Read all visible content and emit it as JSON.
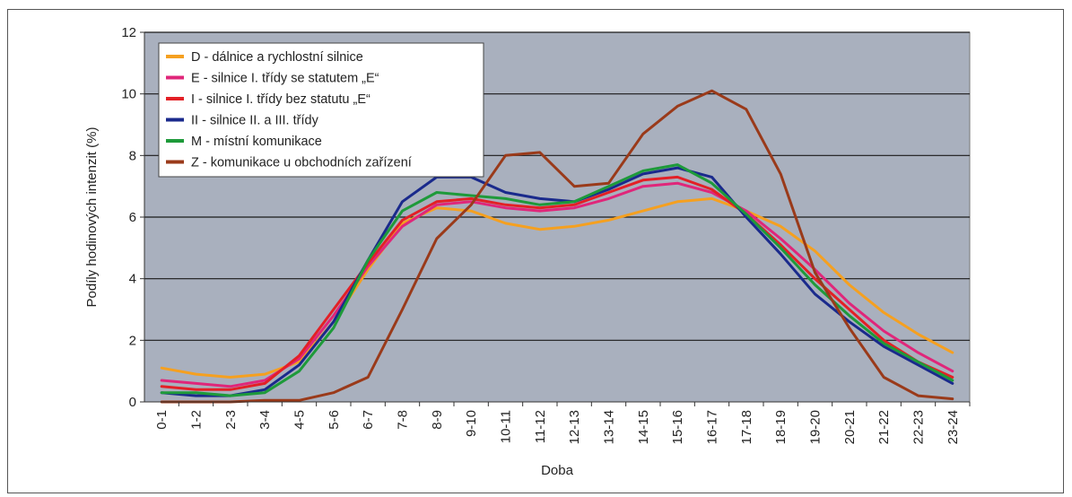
{
  "chart_data": {
    "type": "line",
    "title": "",
    "xlabel": "Doba",
    "ylabel": "Podíly hodinových intenzit (%)",
    "ylim": [
      0,
      12
    ],
    "yticks": [
      0,
      2,
      4,
      6,
      8,
      10,
      12
    ],
    "grid": true,
    "legend_position": "top-left",
    "background": "#a9b0be",
    "categories": [
      "0-1",
      "1-2",
      "2-3",
      "3-4",
      "4-5",
      "5-6",
      "6-7",
      "7-8",
      "8-9",
      "9-10",
      "10-11",
      "11-12",
      "12-13",
      "13-14",
      "14-15",
      "15-16",
      "16-17",
      "17-18",
      "18-19",
      "19-20",
      "20-21",
      "21-22",
      "22-23",
      "23-24"
    ],
    "series": [
      {
        "name": "D - dálnice a rychlostní silnice",
        "color": "#f5a020",
        "values": [
          1.1,
          0.9,
          0.8,
          0.9,
          1.3,
          2.6,
          4.3,
          5.8,
          6.3,
          6.2,
          5.8,
          5.6,
          5.7,
          5.9,
          6.2,
          6.5,
          6.6,
          6.2,
          5.7,
          4.9,
          3.8,
          2.9,
          2.2,
          1.6
        ]
      },
      {
        "name": "E - silnice I. třídy se statutem „E“",
        "color": "#e0267a",
        "values": [
          0.7,
          0.6,
          0.5,
          0.7,
          1.4,
          2.8,
          4.4,
          5.7,
          6.4,
          6.5,
          6.3,
          6.2,
          6.3,
          6.6,
          7.0,
          7.1,
          6.8,
          6.2,
          5.3,
          4.3,
          3.2,
          2.3,
          1.6,
          1.0
        ]
      },
      {
        "name": "I - silnice I. třídy bez statutu „E“",
        "color": "#e32026",
        "values": [
          0.5,
          0.4,
          0.4,
          0.6,
          1.5,
          3.0,
          4.5,
          5.9,
          6.5,
          6.6,
          6.4,
          6.3,
          6.4,
          6.8,
          7.2,
          7.3,
          6.9,
          6.1,
          5.1,
          4.0,
          3.0,
          2.0,
          1.3,
          0.8
        ]
      },
      {
        "name": "II - silnice II. a III. třídy",
        "color": "#1a2a8c",
        "values": [
          0.3,
          0.2,
          0.2,
          0.4,
          1.2,
          2.6,
          4.6,
          6.5,
          7.3,
          7.3,
          6.8,
          6.6,
          6.5,
          6.9,
          7.4,
          7.6,
          7.3,
          6.0,
          4.8,
          3.5,
          2.6,
          1.8,
          1.2,
          0.6
        ]
      },
      {
        "name": "M - místní komunikace",
        "color": "#1e9a3a",
        "values": [
          0.3,
          0.3,
          0.2,
          0.3,
          1.0,
          2.4,
          4.6,
          6.2,
          6.8,
          6.7,
          6.6,
          6.4,
          6.5,
          7.0,
          7.5,
          7.7,
          7.1,
          6.1,
          5.0,
          3.8,
          2.8,
          1.9,
          1.3,
          0.7
        ]
      },
      {
        "name": "Z - komunikace u obchodních zařízení",
        "color": "#9a3a1a",
        "values": [
          0.0,
          0.0,
          0.0,
          0.05,
          0.05,
          0.3,
          0.8,
          3.0,
          5.3,
          6.4,
          8.0,
          8.1,
          7.0,
          7.1,
          8.7,
          9.6,
          10.1,
          9.5,
          7.4,
          4.2,
          2.4,
          0.8,
          0.2,
          0.1
        ]
      }
    ]
  }
}
